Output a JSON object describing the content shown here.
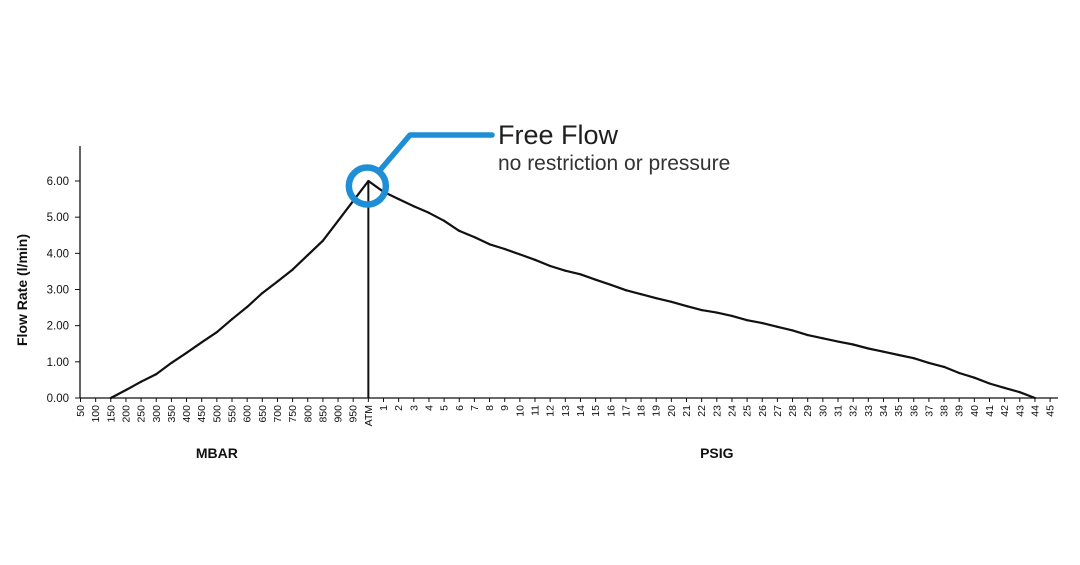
{
  "chart_data": {
    "type": "line",
    "title": "",
    "ylabel": "Flow Rate (l/min)",
    "ylim": [
      0,
      6
    ],
    "grid": false,
    "yticks": [
      "0.00",
      "1.00",
      "2.00",
      "3.00",
      "4.00",
      "5.00",
      "6.00"
    ],
    "x_groups": [
      {
        "label": "MBAR",
        "from": "50",
        "to": "950"
      },
      {
        "label": "PSIG",
        "from": "1",
        "to": "45"
      }
    ],
    "categories": [
      "50",
      "100",
      "150",
      "200",
      "250",
      "300",
      "350",
      "400",
      "450",
      "500",
      "550",
      "600",
      "650",
      "700",
      "750",
      "800",
      "850",
      "900",
      "950",
      "ATM",
      "1",
      "2",
      "3",
      "4",
      "5",
      "6",
      "7",
      "8",
      "9",
      "10",
      "11",
      "12",
      "13",
      "14",
      "15",
      "16",
      "17",
      "18",
      "19",
      "20",
      "21",
      "22",
      "23",
      "24",
      "25",
      "26",
      "27",
      "28",
      "29",
      "30",
      "31",
      "32",
      "33",
      "34",
      "35",
      "36",
      "37",
      "38",
      "39",
      "40",
      "41",
      "42",
      "43",
      "44",
      "45"
    ],
    "series": [
      {
        "values": [
          null,
          null,
          0.0,
          0.22,
          0.45,
          0.66,
          0.97,
          1.25,
          1.54,
          1.82,
          2.18,
          2.52,
          2.9,
          3.22,
          3.55,
          3.95,
          4.35,
          4.9,
          5.45,
          6.0,
          5.7,
          5.5,
          5.3,
          5.12,
          4.9,
          4.62,
          4.45,
          4.25,
          4.12,
          3.97,
          3.82,
          3.65,
          3.52,
          3.42,
          3.27,
          3.13,
          2.98,
          2.87,
          2.76,
          2.66,
          2.54,
          2.43,
          2.36,
          2.27,
          2.15,
          2.07,
          1.97,
          1.87,
          1.74,
          1.65,
          1.56,
          1.48,
          1.37,
          1.28,
          1.19,
          1.1,
          0.97,
          0.86,
          0.69,
          0.56,
          0.4,
          0.28,
          0.16,
          0.0,
          null
        ]
      }
    ],
    "annotation": {
      "title": "Free Flow",
      "subtitle": "no restriction or pressure",
      "at_category": "ATM",
      "at_value": 6.0,
      "color": "#1e8fd6"
    }
  }
}
